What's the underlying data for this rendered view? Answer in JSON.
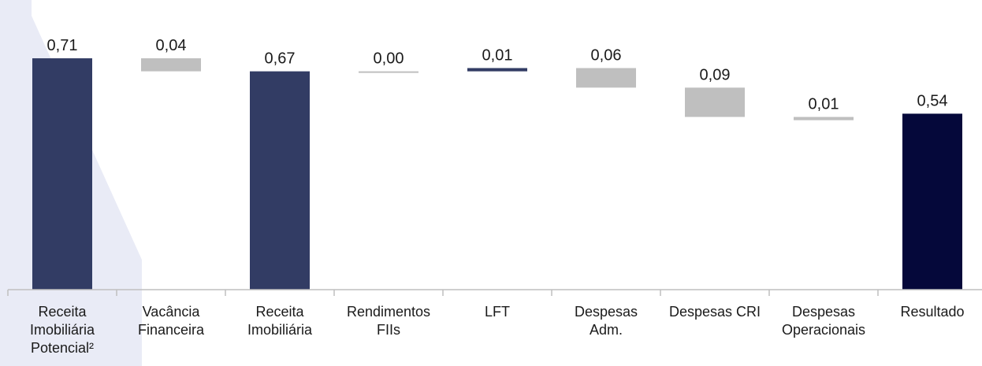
{
  "chart_data": {
    "type": "bar",
    "subtype": "waterfall",
    "title": "",
    "xlabel": "",
    "ylabel": "",
    "ylim": [
      0,
      0.8
    ],
    "grid": false,
    "legend": "none",
    "categories": [
      [
        "Receita",
        "Imobiliária",
        "Potencial²"
      ],
      [
        "Vacância",
        "Financeira"
      ],
      [
        "Receita",
        "Imobiliária"
      ],
      [
        "Rendimentos",
        "FIIs"
      ],
      [
        "LFT"
      ],
      [
        "Despesas",
        "Adm."
      ],
      [
        "Despesas CRI"
      ],
      [
        "Despesas",
        "Operacionais"
      ],
      [
        "Resultado"
      ]
    ],
    "bars": [
      {
        "kind": "total",
        "value": 0.71,
        "label": "0,71",
        "color": "#323c64"
      },
      {
        "kind": "decrease",
        "value": 0.04,
        "label": "0,04",
        "color": "#bfbfbf"
      },
      {
        "kind": "total",
        "value": 0.67,
        "label": "0,67",
        "color": "#323c64"
      },
      {
        "kind": "increase",
        "value": 0.0,
        "label": "0,00",
        "color": "#bfbfbf"
      },
      {
        "kind": "increase",
        "value": 0.01,
        "label": "0,01",
        "color": "#323c64"
      },
      {
        "kind": "decrease",
        "value": 0.06,
        "label": "0,06",
        "color": "#bfbfbf"
      },
      {
        "kind": "decrease",
        "value": 0.09,
        "label": "0,09",
        "color": "#bfbfbf"
      },
      {
        "kind": "decrease",
        "value": 0.01,
        "label": "0,01",
        "color": "#bfbfbf"
      },
      {
        "kind": "total",
        "value": 0.54,
        "label": "0,54",
        "color": "#05083a"
      }
    ],
    "background_accent": "#e9ebf6",
    "axis_color": "#bfbfbf"
  }
}
